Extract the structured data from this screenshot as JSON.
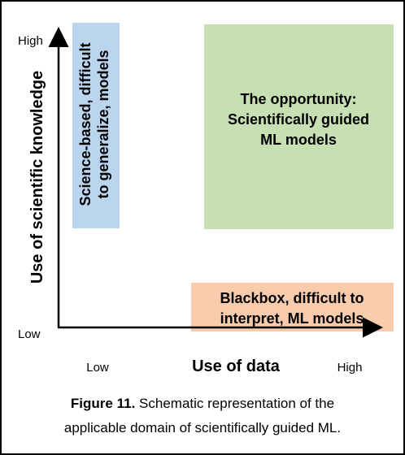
{
  "axes": {
    "y_label": "Use of scientific knowledge",
    "y_high": "High",
    "y_low": "Low",
    "x_label": "Use of data",
    "x_low": "Low",
    "x_high": "High"
  },
  "boxes": [
    {
      "lines": [
        "Science-based, difficult",
        "to generalize, models"
      ]
    },
    {
      "lines": [
        "The opportunity:",
        "Scientifically guided",
        "ML models"
      ]
    },
    {
      "lines": [
        "Blackbox, difficult to",
        "interpret, ML models"
      ]
    }
  ],
  "caption": {
    "label": "Figure 11.",
    "lines": [
      "Schematic representation of the",
      "applicable domain of scientifically guided ML."
    ]
  }
}
